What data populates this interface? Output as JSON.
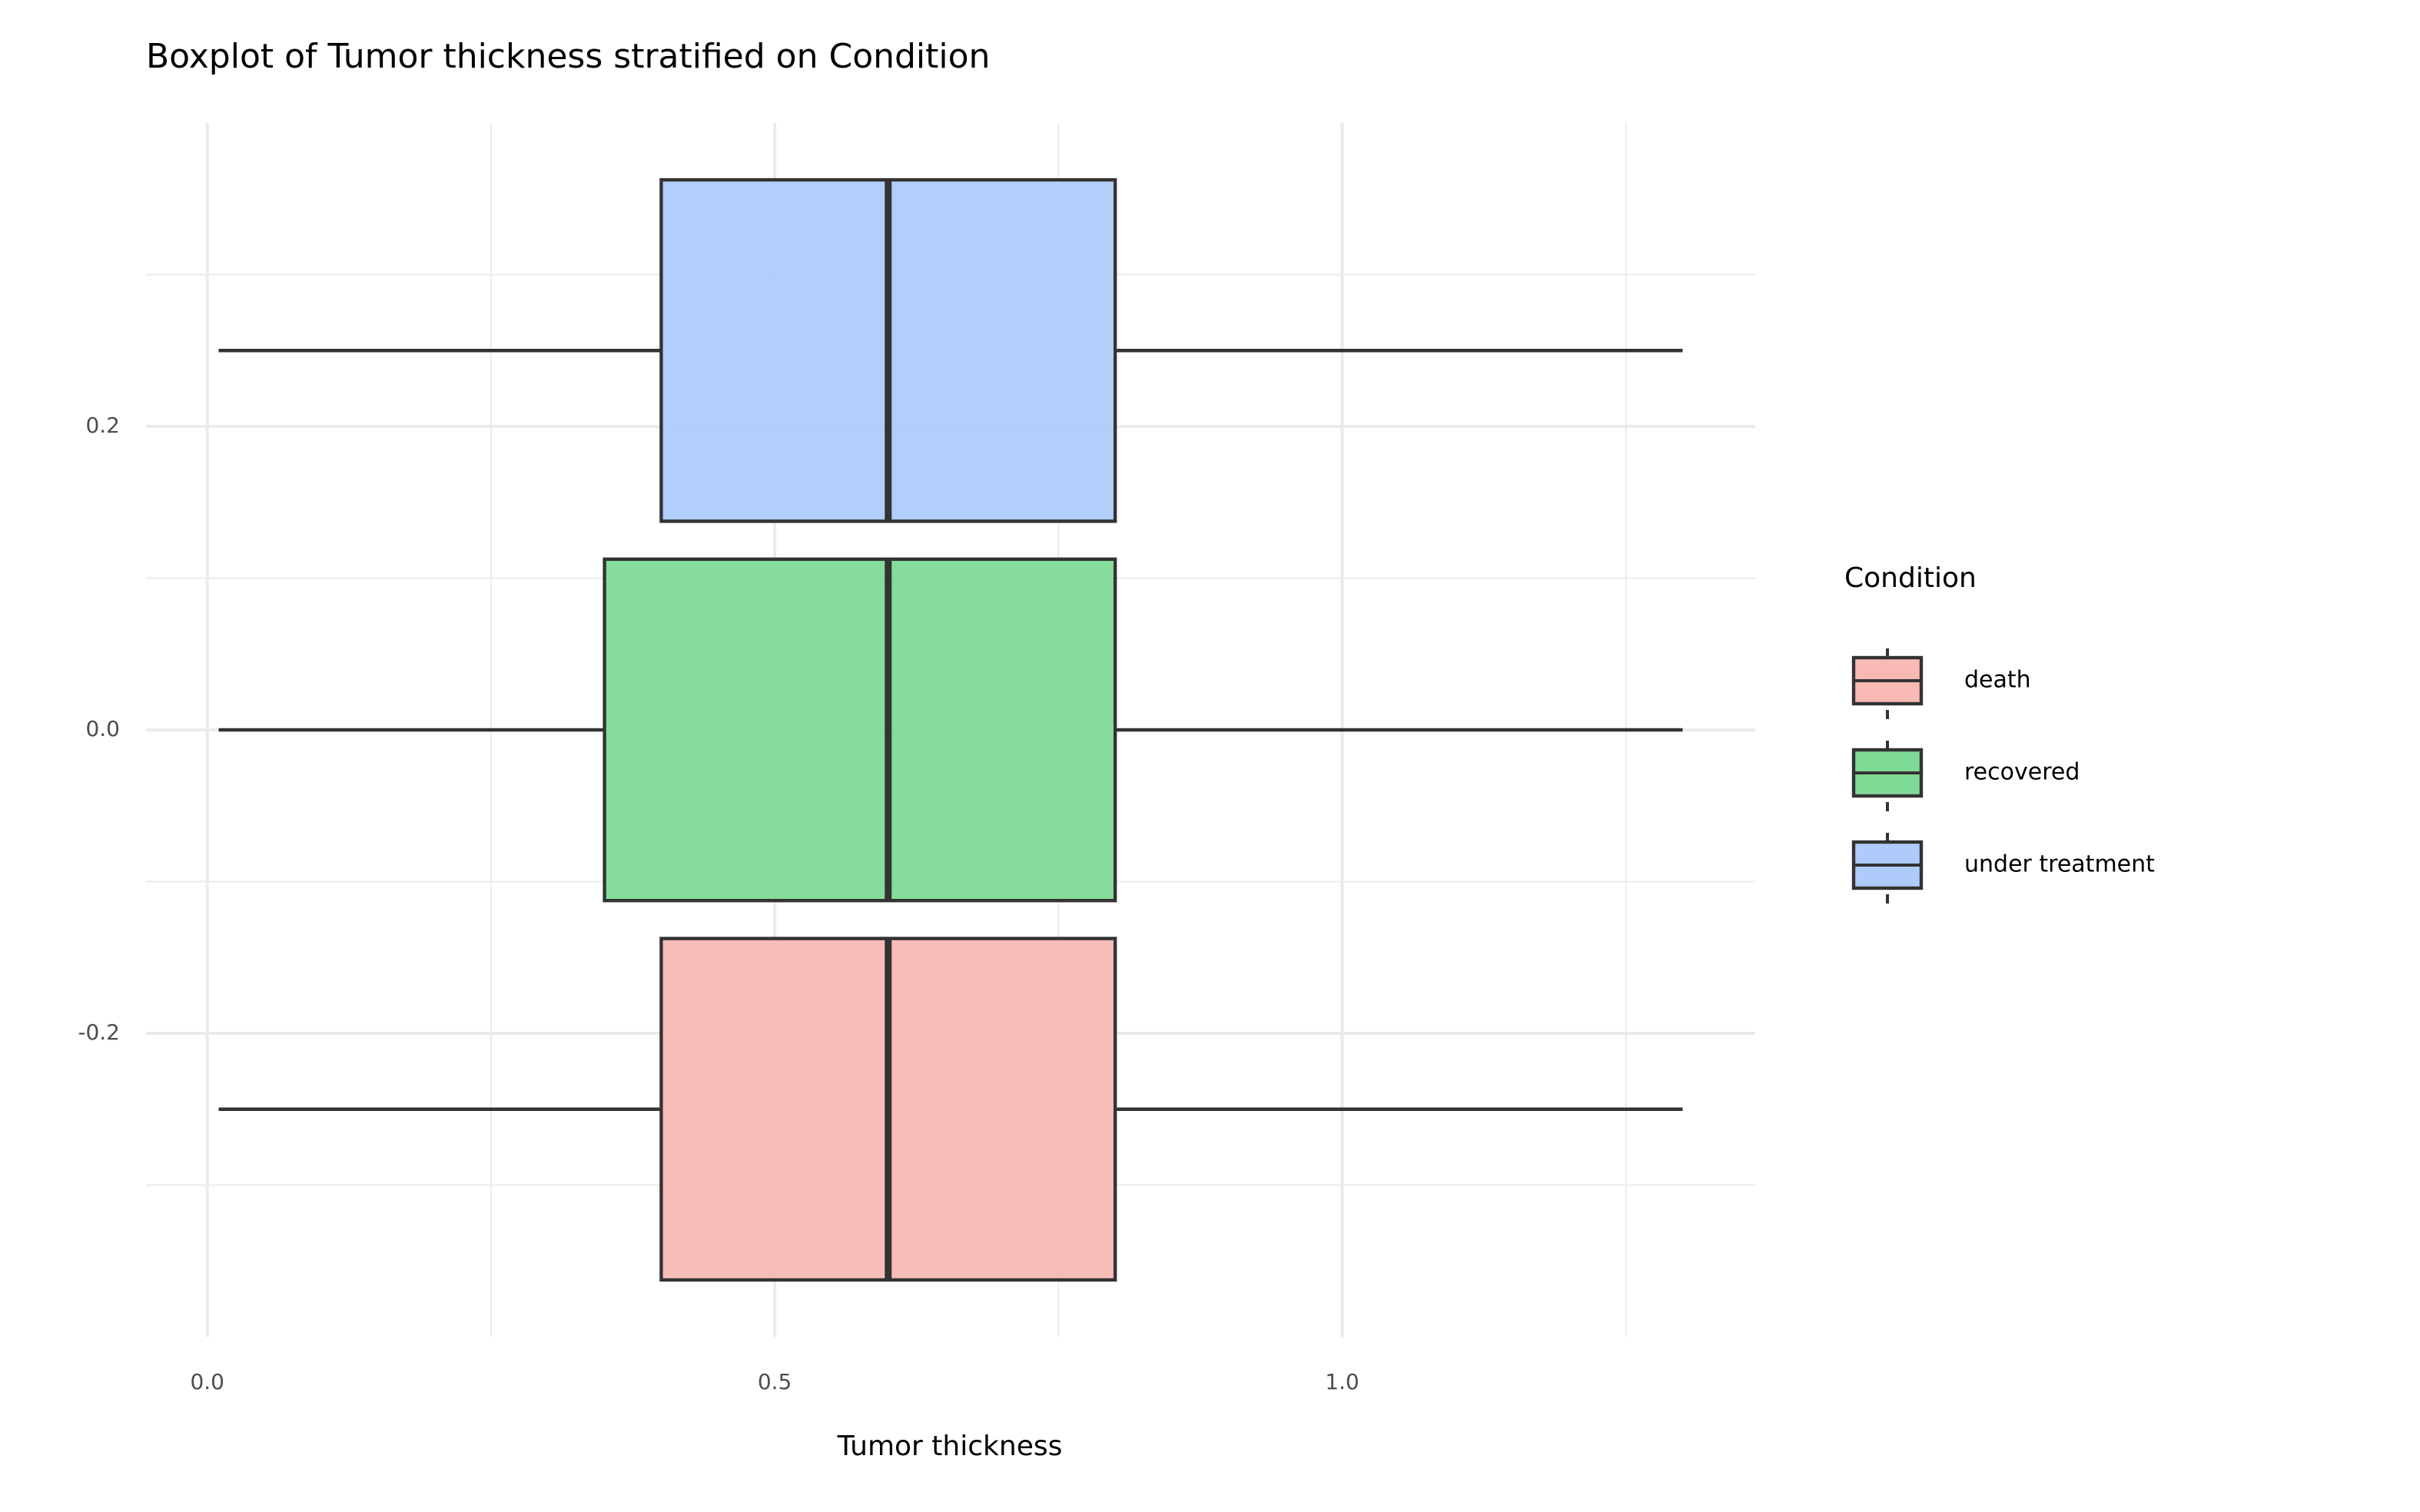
{
  "chart_data": {
    "type": "boxplot",
    "orientation": "horizontal",
    "title": "Boxplot of Tumor thickness stratified on Condition",
    "x_label": "Tumor thickness",
    "legend_title": "Condition",
    "legend_position": "right",
    "grid": true,
    "xlim": [
      -0.054,
      1.364
    ],
    "xticks": [
      {
        "value": 0,
        "label": "0.0"
      },
      0.5,
      {
        "value": 1,
        "label": "1.0"
      }
    ],
    "xminor": [
      0.25,
      0.75,
      1.25
    ],
    "ylim": [
      -0.4,
      0.4
    ],
    "yticks": [
      -0.2,
      {
        "value": 0,
        "label": "0.0"
      },
      0.2
    ],
    "yminor": [
      -0.3,
      -0.1,
      0.1,
      0.3
    ],
    "series": [
      {
        "name": "death",
        "color": "#f9b9b5",
        "position": -0.25,
        "min": 0.01,
        "q1": 0.4,
        "median": 0.6,
        "q3": 0.8,
        "max": 1.3
      },
      {
        "name": "recovered",
        "color": "#7fda95",
        "position": 0,
        "min": 0.01,
        "q1": 0.35,
        "median": 0.6,
        "q3": 0.8,
        "max": 1.3
      },
      {
        "name": "under treatment",
        "color": "#aecbfb",
        "position": 0.25,
        "min": 0.01,
        "q1": 0.4,
        "median": 0.6,
        "q3": 0.8,
        "max": 1.3
      }
    ]
  }
}
